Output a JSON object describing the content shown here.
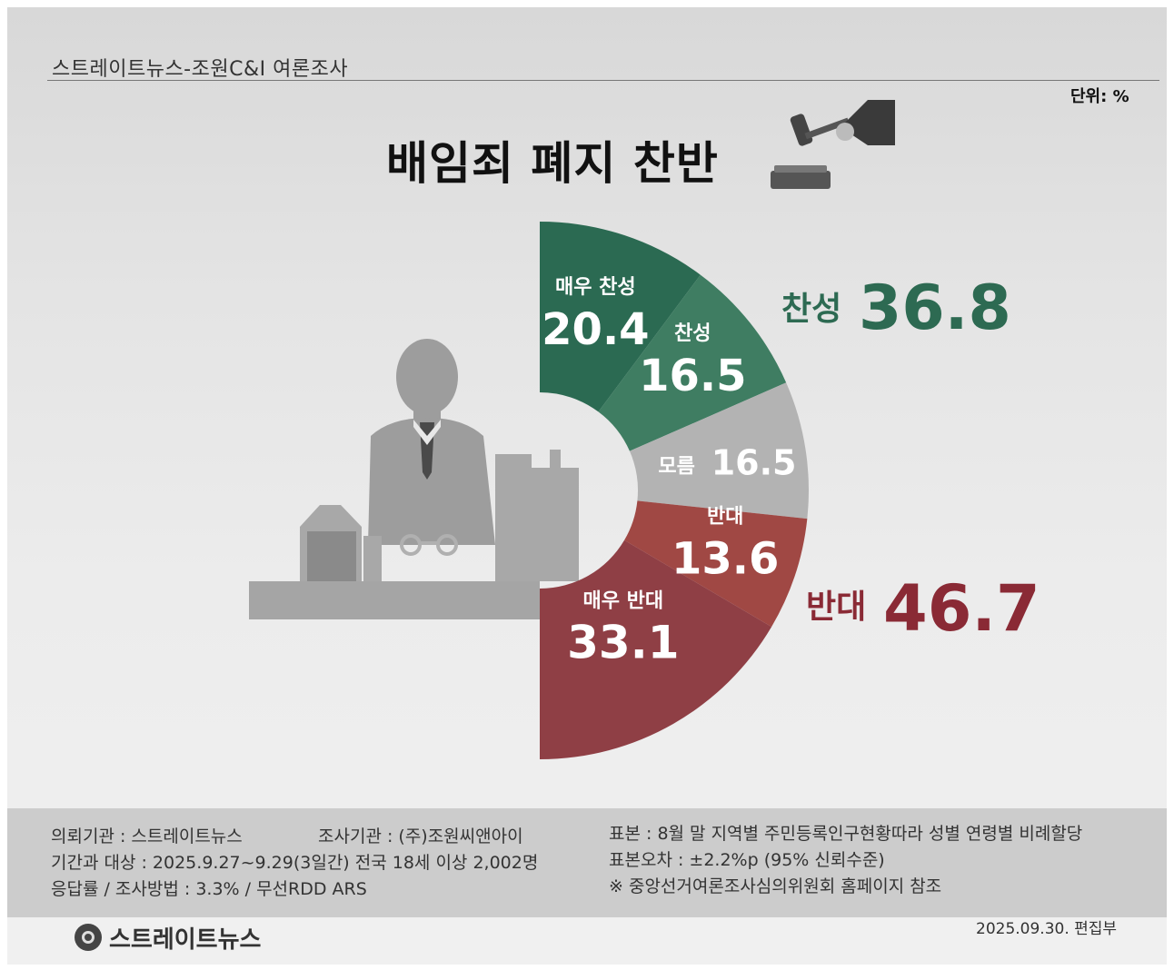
{
  "header": {
    "source": "스트레이트뉴스-조원C&I 여론조사",
    "unit": "단위: %",
    "title": "배임죄 폐지 찬반"
  },
  "chart_data": {
    "type": "pie",
    "title": "배임죄 폐지 찬반",
    "unit": "%",
    "categories": [
      "매우 찬성",
      "찬성",
      "모름",
      "반대",
      "매우 반대"
    ],
    "values": [
      20.4,
      16.5,
      16.5,
      13.6,
      33.1
    ],
    "labels": {
      "very_agree": "매우 찬성",
      "agree": "찬성",
      "unknown": "모름",
      "disagree": "반대",
      "very_disagree": "매우 반대"
    },
    "totals": {
      "agree_label": "찬성",
      "agree_value": "36.8",
      "disagree_label": "반대",
      "disagree_value": "46.7"
    },
    "colors": [
      "#2b6a52",
      "#3f7d62",
      "#b3b3b3",
      "#a04844",
      "#8f3f45"
    ],
    "total_colors": {
      "agree": "#2d6a52",
      "disagree": "#8a2a35"
    }
  },
  "footer": {
    "client": "의뢰기관 : 스트레이트뉴스",
    "agency": "조사기관 : (주)조원씨앤아이",
    "period": "기간과 대상 : 2025.9.27~9.29(3일간)   전국 18세 이상  2,002명",
    "response": "응답률 / 조사방법 : 3.3% / 무선RDD ARS",
    "sample": "표본 : 8월 말 지역별 주민등록인구현황따라 성별 연령별 비례할당",
    "error": "표본오차 : ±2.2%p (95% 신뢰수준)",
    "note": "※ 중앙선거여론조사심의위원회 홈페이지 참조",
    "brand": "스트레이트뉴스",
    "date": "2025.09.30. 편집부"
  },
  "icons": [
    "gavel-icon",
    "businessman-silhouette-icon",
    "handcuffs-icon",
    "buildings-icon",
    "logo-icon"
  ]
}
